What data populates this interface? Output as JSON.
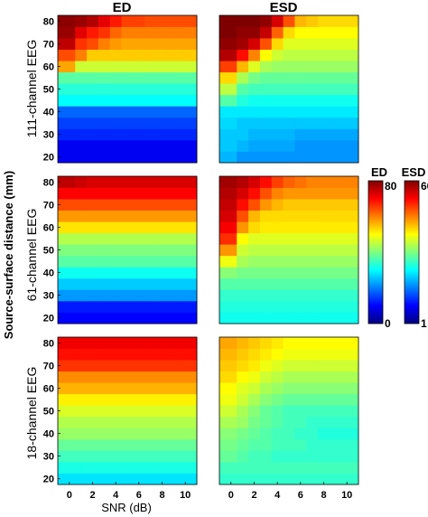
{
  "figure": {
    "y_axis_label": "Source-surface distance (mm)",
    "x_axis_label": "SNR (dB)"
  },
  "chart_data": {
    "type": "heatmap",
    "column_titles": [
      "ED",
      "ESD"
    ],
    "row_labels": [
      "111-channel EEG",
      "61-channel EEG",
      "18-channel EEG"
    ],
    "x_ticks": [
      "0",
      "2",
      "4",
      "6",
      "8",
      "10"
    ],
    "y_ticks": [
      "20",
      "30",
      "40",
      "50",
      "60",
      "70",
      "80"
    ],
    "snr": [
      0,
      1,
      2,
      3,
      4,
      5,
      6,
      7,
      8,
      9,
      10
    ],
    "distance": [
      20,
      25,
      30,
      35,
      40,
      45,
      50,
      55,
      60,
      65,
      70,
      75,
      80
    ],
    "colorscales": {
      "ED": {
        "title": "ED",
        "min": 0,
        "max": 80,
        "min_label": "0",
        "max_label": "80"
      },
      "ESD": {
        "title": "ESD",
        "min": 1,
        "max": 60,
        "min_label": "1",
        "max_label": "60"
      }
    },
    "colormap": [
      "#00007f",
      "#0000ff",
      "#007fff",
      "#00ffff",
      "#7fff7f",
      "#ffff00",
      "#ff7f00",
      "#ff0000",
      "#7f0000"
    ],
    "panels": [
      {
        "row": "111-channel EEG",
        "column": "ED",
        "values": [
          [
            9,
            9,
            9,
            9,
            9,
            9,
            9,
            9,
            9,
            9,
            9
          ],
          [
            9,
            9,
            9,
            9,
            9,
            9,
            9,
            9,
            9,
            9,
            9
          ],
          [
            13,
            13,
            13,
            13,
            13,
            13,
            13,
            13,
            13,
            13,
            13
          ],
          [
            15,
            15,
            15,
            15,
            15,
            15,
            15,
            15,
            15,
            15,
            15
          ],
          [
            18,
            18,
            18,
            18,
            18,
            18,
            18,
            18,
            18,
            18,
            18
          ],
          [
            30,
            30,
            30,
            30,
            30,
            30,
            30,
            30,
            30,
            30,
            30
          ],
          [
            33,
            33,
            33,
            33,
            33,
            33,
            33,
            33,
            33,
            33,
            33
          ],
          [
            37,
            37,
            37,
            37,
            37,
            37,
            37,
            37,
            37,
            37,
            37
          ],
          [
            57,
            46,
            46,
            46,
            46,
            46,
            46,
            46,
            46,
            46,
            46
          ],
          [
            64,
            60,
            54,
            54,
            54,
            54,
            54,
            54,
            54,
            54,
            54
          ],
          [
            75,
            66,
            64,
            60,
            58,
            57,
            57,
            57,
            57,
            57,
            57
          ],
          [
            78,
            72,
            68,
            66,
            62,
            60,
            60,
            60,
            60,
            60,
            60
          ],
          [
            79,
            78,
            76,
            72,
            68,
            65,
            65,
            64,
            64,
            64,
            64
          ]
        ]
      },
      {
        "row": "111-channel EEG",
        "column": "ESD",
        "values": [
          [
            19,
            17,
            17,
            17,
            17,
            17,
            17,
            17,
            17,
            17,
            17
          ],
          [
            20,
            19,
            18,
            18,
            18,
            18,
            17,
            17,
            17,
            17,
            17
          ],
          [
            20,
            20,
            19,
            19,
            19,
            19,
            18,
            18,
            18,
            18,
            18
          ],
          [
            21,
            20,
            20,
            20,
            20,
            20,
            20,
            20,
            20,
            20,
            20
          ],
          [
            22,
            22,
            22,
            22,
            22,
            22,
            22,
            22,
            22,
            22,
            22
          ],
          [
            28,
            25,
            24,
            24,
            24,
            24,
            24,
            24,
            24,
            24,
            24
          ],
          [
            34,
            28,
            27,
            27,
            27,
            27,
            27,
            27,
            27,
            27,
            27
          ],
          [
            40,
            33,
            30,
            29,
            29,
            29,
            29,
            29,
            29,
            29,
            29
          ],
          [
            49,
            42,
            36,
            33,
            32,
            32,
            32,
            32,
            32,
            32,
            32
          ],
          [
            57,
            52,
            45,
            38,
            35,
            34,
            34,
            34,
            34,
            34,
            34
          ],
          [
            59,
            58,
            55,
            48,
            40,
            36,
            36,
            36,
            36,
            36,
            36
          ],
          [
            60,
            59,
            59,
            56,
            47,
            40,
            38,
            38,
            38,
            38,
            38
          ],
          [
            60,
            60,
            60,
            59,
            55,
            48,
            42,
            41,
            40,
            40,
            40
          ]
        ]
      },
      {
        "row": "61-channel EEG",
        "column": "ED",
        "values": [
          [
            10,
            10,
            10,
            10,
            10,
            10,
            10,
            10,
            10,
            10,
            10
          ],
          [
            12,
            12,
            12,
            12,
            12,
            12,
            12,
            12,
            12,
            12,
            12
          ],
          [
            22,
            22,
            22,
            22,
            22,
            22,
            22,
            22,
            22,
            22,
            22
          ],
          [
            26,
            26,
            26,
            26,
            26,
            26,
            26,
            26,
            26,
            26,
            26
          ],
          [
            31,
            31,
            31,
            31,
            31,
            31,
            31,
            31,
            31,
            31,
            31
          ],
          [
            37,
            37,
            37,
            37,
            37,
            37,
            37,
            37,
            37,
            37,
            37
          ],
          [
            40,
            40,
            40,
            40,
            40,
            40,
            40,
            40,
            40,
            40,
            40
          ],
          [
            44,
            44,
            44,
            44,
            44,
            44,
            44,
            44,
            44,
            44,
            44
          ],
          [
            52,
            52,
            52,
            52,
            52,
            52,
            52,
            52,
            52,
            52,
            52
          ],
          [
            58,
            58,
            58,
            58,
            58,
            58,
            58,
            58,
            58,
            58,
            58
          ],
          [
            64,
            64,
            64,
            64,
            64,
            64,
            64,
            64,
            64,
            64,
            64
          ],
          [
            70,
            70,
            70,
            70,
            70,
            70,
            70,
            70,
            70,
            70,
            70
          ],
          [
            75,
            74,
            73,
            73,
            73,
            73,
            73,
            73,
            73,
            73,
            73
          ]
        ]
      },
      {
        "row": "61-channel EEG",
        "column": "ESD",
        "values": [
          [
            24,
            24,
            24,
            24,
            24,
            24,
            24,
            24,
            24,
            24,
            24
          ],
          [
            25,
            25,
            25,
            25,
            25,
            25,
            25,
            25,
            25,
            25,
            25
          ],
          [
            26,
            26,
            26,
            26,
            26,
            26,
            26,
            26,
            26,
            26,
            26
          ],
          [
            28,
            28,
            28,
            28,
            28,
            28,
            28,
            28,
            28,
            28,
            28
          ],
          [
            31,
            30,
            30,
            30,
            30,
            30,
            30,
            30,
            30,
            30,
            30
          ],
          [
            37,
            33,
            32,
            32,
            32,
            32,
            32,
            32,
            32,
            32,
            32
          ],
          [
            44,
            35,
            34,
            34,
            34,
            34,
            34,
            34,
            34,
            34,
            34
          ],
          [
            50,
            38,
            36,
            36,
            36,
            36,
            36,
            36,
            36,
            36,
            36
          ],
          [
            53,
            44,
            40,
            39,
            39,
            39,
            39,
            39,
            39,
            39,
            39
          ],
          [
            55,
            48,
            42,
            40,
            40,
            40,
            40,
            40,
            40,
            40,
            40
          ],
          [
            56,
            52,
            48,
            44,
            42,
            41,
            41,
            41,
            41,
            41,
            41
          ],
          [
            57,
            55,
            52,
            48,
            45,
            44,
            44,
            44,
            44,
            44,
            44
          ],
          [
            58,
            57,
            55,
            52,
            49,
            47,
            46,
            45,
            45,
            45,
            45
          ]
        ]
      },
      {
        "row": "18-channel EEG",
        "column": "ED",
        "values": [
          [
            28,
            28,
            28,
            28,
            28,
            28,
            28,
            28,
            28,
            28,
            28
          ],
          [
            32,
            32,
            32,
            32,
            32,
            32,
            32,
            32,
            32,
            32,
            32
          ],
          [
            35,
            35,
            35,
            35,
            35,
            35,
            35,
            35,
            35,
            35,
            35
          ],
          [
            38,
            38,
            38,
            38,
            38,
            38,
            38,
            38,
            38,
            38,
            38
          ],
          [
            42,
            42,
            42,
            42,
            42,
            42,
            42,
            42,
            42,
            42,
            42
          ],
          [
            44,
            44,
            44,
            44,
            44,
            44,
            44,
            44,
            44,
            44,
            44
          ],
          [
            47,
            47,
            47,
            47,
            47,
            47,
            47,
            47,
            47,
            47,
            47
          ],
          [
            51,
            51,
            51,
            51,
            51,
            51,
            51,
            51,
            51,
            51,
            51
          ],
          [
            56,
            56,
            56,
            56,
            56,
            56,
            56,
            56,
            56,
            56,
            56
          ],
          [
            59,
            59,
            59,
            59,
            59,
            59,
            59,
            59,
            59,
            59,
            59
          ],
          [
            66,
            66,
            66,
            66,
            66,
            66,
            66,
            66,
            66,
            66,
            66
          ],
          [
            69,
            69,
            69,
            69,
            69,
            69,
            69,
            69,
            69,
            69,
            69
          ],
          [
            71,
            71,
            71,
            71,
            71,
            71,
            71,
            71,
            71,
            71,
            71
          ]
        ]
      },
      {
        "row": "18-channel EEG",
        "column": "ESD",
        "values": [
          [
            26,
            26,
            26,
            26,
            26,
            26,
            26,
            26,
            26,
            26,
            26
          ],
          [
            27,
            27,
            27,
            27,
            27,
            27,
            27,
            27,
            27,
            27,
            27
          ],
          [
            29,
            28,
            27,
            27,
            26,
            26,
            26,
            26,
            26,
            26,
            26
          ],
          [
            30,
            29,
            28,
            28,
            27,
            27,
            27,
            26,
            26,
            26,
            26
          ],
          [
            31,
            30,
            29,
            28,
            27,
            27,
            26,
            26,
            25,
            25,
            25
          ],
          [
            33,
            32,
            30,
            29,
            28,
            27,
            27,
            26,
            26,
            26,
            26
          ],
          [
            35,
            33,
            31,
            29,
            28,
            27,
            27,
            27,
            27,
            27,
            27
          ],
          [
            37,
            35,
            33,
            31,
            30,
            29,
            29,
            29,
            29,
            29,
            29
          ],
          [
            38,
            36,
            35,
            33,
            32,
            31,
            31,
            31,
            31,
            31,
            31
          ],
          [
            40,
            38,
            37,
            35,
            34,
            33,
            33,
            33,
            33,
            33,
            33
          ],
          [
            41,
            40,
            39,
            37,
            36,
            35,
            35,
            35,
            35,
            35,
            35
          ],
          [
            42,
            41,
            40,
            39,
            38,
            37,
            37,
            37,
            37,
            37,
            37
          ],
          [
            43,
            42,
            41,
            40,
            39,
            38,
            38,
            38,
            38,
            38,
            38
          ]
        ]
      }
    ]
  }
}
